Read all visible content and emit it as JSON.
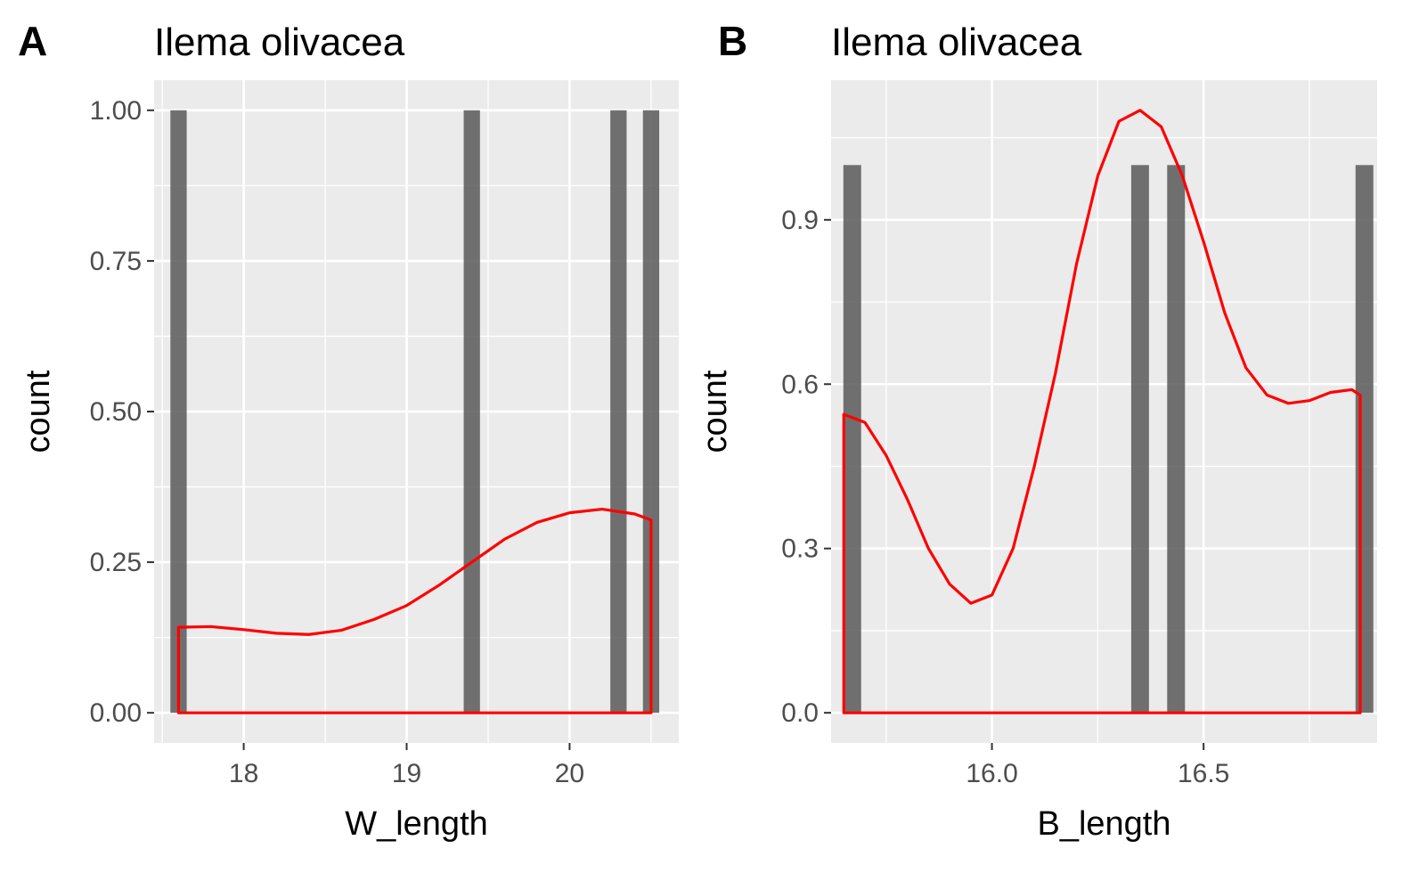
{
  "chart_data": [
    {
      "type": "bar",
      "panel_label": "A",
      "title": "Ilema olivacea",
      "xlabel": "W_length",
      "ylabel": "count",
      "xlim": [
        17.45,
        20.67
      ],
      "ylim": [
        -0.05,
        1.05
      ],
      "x_ticks": [
        18,
        19,
        20
      ],
      "x_tick_labels": [
        "18",
        "19",
        "20"
      ],
      "y_ticks": [
        0,
        0.25,
        0.5,
        0.75,
        1.0
      ],
      "y_tick_labels": [
        "0.00",
        "0.25",
        "0.50",
        "0.75",
        "1.00"
      ],
      "bar_width": 0.1,
      "bars": [
        {
          "x": 17.6,
          "count": 1
        },
        {
          "x": 19.4,
          "count": 1
        },
        {
          "x": 20.3,
          "count": 1
        },
        {
          "x": 20.5,
          "count": 1
        }
      ],
      "density_curve": {
        "color": "#ff0000",
        "x": [
          17.6,
          17.8,
          18.0,
          18.2,
          18.4,
          18.6,
          18.8,
          19.0,
          19.2,
          19.4,
          19.6,
          19.8,
          20.0,
          20.2,
          20.4,
          20.5
        ],
        "y": [
          0.142,
          0.143,
          0.138,
          0.132,
          0.13,
          0.137,
          0.155,
          0.178,
          0.212,
          0.25,
          0.288,
          0.316,
          0.332,
          0.338,
          0.33,
          0.32
        ]
      },
      "grid": true
    },
    {
      "type": "bar",
      "panel_label": "B",
      "title": "Ilema olivacea",
      "xlabel": "B_length",
      "ylabel": "count",
      "xlim": [
        15.62,
        16.91
      ],
      "ylim": [
        -0.055,
        1.155
      ],
      "x_ticks": [
        16.0,
        16.5
      ],
      "x_tick_labels": [
        "16.0",
        "16.5"
      ],
      "y_ticks": [
        0,
        0.3,
        0.6,
        0.9
      ],
      "y_tick_labels": [
        "0.0",
        "0.3",
        "0.6",
        "0.9"
      ],
      "bar_width": 0.042,
      "bars": [
        {
          "x": 15.67,
          "count": 1
        },
        {
          "x": 16.35,
          "count": 1
        },
        {
          "x": 16.435,
          "count": 1
        },
        {
          "x": 16.88,
          "count": 1
        }
      ],
      "density_curve": {
        "color": "#ff0000",
        "x": [
          15.65,
          15.7,
          15.75,
          15.8,
          15.85,
          15.9,
          15.95,
          16.0,
          16.05,
          16.1,
          16.15,
          16.2,
          16.25,
          16.3,
          16.35,
          16.4,
          16.45,
          16.5,
          16.55,
          16.6,
          16.65,
          16.7,
          16.75,
          16.8,
          16.85,
          16.87
        ],
        "y": [
          0.545,
          0.53,
          0.47,
          0.39,
          0.3,
          0.235,
          0.2,
          0.215,
          0.3,
          0.45,
          0.62,
          0.82,
          0.98,
          1.08,
          1.1,
          1.07,
          0.98,
          0.86,
          0.73,
          0.63,
          0.58,
          0.565,
          0.57,
          0.585,
          0.59,
          0.58
        ]
      },
      "grid": true
    }
  ]
}
